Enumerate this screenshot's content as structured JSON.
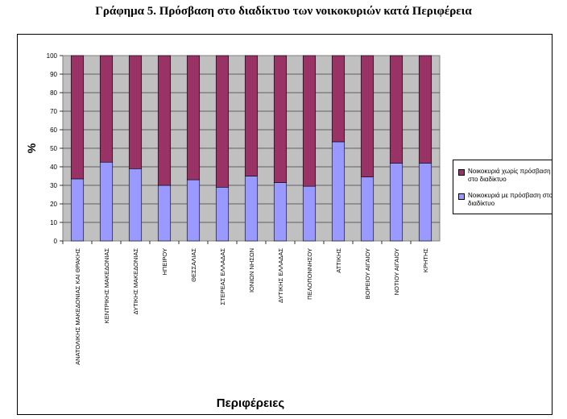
{
  "page": {
    "title": "Γράφημα 5. Πρόσβαση στο διαδίκτυο των νοικοκυριών κατά Περιφέρεια"
  },
  "chart_data": {
    "type": "bar",
    "stacked": true,
    "title": "",
    "xlabel": "Περιφέρειες",
    "ylabel": "%",
    "ylim": [
      0,
      100
    ],
    "yticks": [
      0,
      10,
      20,
      30,
      40,
      50,
      60,
      70,
      80,
      90,
      100
    ],
    "grid": true,
    "legend_position": "right",
    "categories": [
      "ΑΝΑΤΟΛΙΚΗΣ ΜΑΚΕΔΟΝΙΑΣ ΚΑΙ ΘΡΑΚΗΣ",
      "ΚΕΝΤΡΙΚΗΣ ΜΑΚΕΔΟΝΙΑΣ",
      "ΔΥΤΙΚΗΣ ΜΑΚΕΔΟΝΙΑΣ",
      "ΗΠΕΙΡΟΥ",
      "ΘΕΣΣΑΛΙΑΣ",
      "ΣΤΕΡΕΑΣ ΕΛΛΑΔΑΣ",
      "ΙΟΝΙΩΝ ΝΗΣΩΝ",
      "ΔΥΤΙΚΗΣ ΕΛΛΑΔΑΣ",
      "ΠΕΛΟΠΟΝΝΗΣΟΥ",
      "ΑΤΤΙΚΗΣ",
      "ΒΟΡΕΙΟΥ ΑΙΓΑΙΟΥ",
      "ΝΟΤΙΟΥ ΑΙΓΑΙΟΥ",
      "ΚΡΗΤΗΣ"
    ],
    "series": [
      {
        "name": "Νοικοκυριά με πρόσβαση στο διαδίκτυο",
        "color": "#9999ff",
        "values": [
          33.5,
          42.5,
          39,
          30,
          33,
          29,
          35,
          31.5,
          29.5,
          53.5,
          34.5,
          42,
          42
        ]
      },
      {
        "name": "Νοικοκυριά χωρίς πρόσβαση στο διαδίκτυο",
        "color": "#993366",
        "values": [
          66.5,
          57.5,
          61,
          70,
          67,
          71,
          65,
          68.5,
          70.5,
          46.5,
          65.5,
          58,
          58
        ]
      }
    ]
  }
}
